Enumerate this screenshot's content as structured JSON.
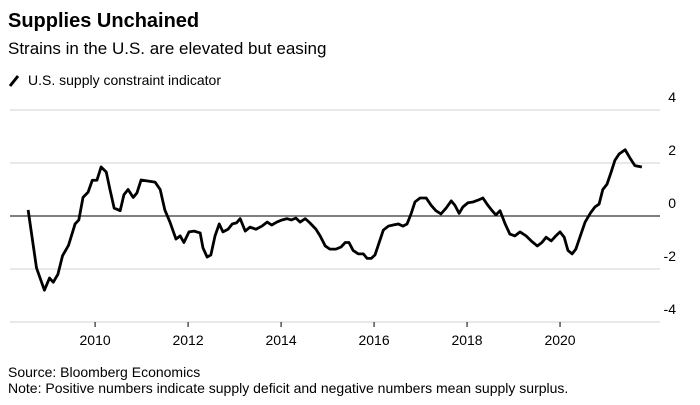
{
  "chart_data": {
    "type": "line",
    "title": "Supplies Unchained",
    "subtitle": "Strains in the U.S. are elevated but easing",
    "source": "Source: Bloomberg Economics",
    "note": "Note: Positive numbers indicate supply deficit and negative numbers mean supply surplus.",
    "x": [
      2008.56,
      2008.74,
      2008.91,
      2009.02,
      2009.1,
      2009.2,
      2009.3,
      2009.43,
      2009.57,
      2009.65,
      2009.74,
      2009.85,
      2009.94,
      2010.04,
      2010.13,
      2010.24,
      2010.32,
      2010.41,
      2010.54,
      2010.62,
      2010.71,
      2010.82,
      2010.9,
      2010.99,
      2011.13,
      2011.29,
      2011.4,
      2011.5,
      2011.61,
      2011.74,
      2011.83,
      2011.91,
      2012.02,
      2012.13,
      2012.26,
      2012.32,
      2012.41,
      2012.49,
      2012.58,
      2012.67,
      2012.75,
      2012.86,
      2012.95,
      2013.04,
      2013.12,
      2013.23,
      2013.33,
      2013.46,
      2013.59,
      2013.7,
      2013.8,
      2013.91,
      2014.02,
      2014.13,
      2014.22,
      2014.32,
      2014.41,
      2014.52,
      2014.62,
      2014.75,
      2014.84,
      2014.95,
      2015.05,
      2015.18,
      2015.29,
      2015.38,
      2015.46,
      2015.55,
      2015.66,
      2015.77,
      2015.85,
      2015.94,
      2016.02,
      2016.11,
      2016.2,
      2016.31,
      2016.41,
      2016.52,
      2016.62,
      2016.71,
      2016.8,
      2016.88,
      2016.99,
      2017.12,
      2017.23,
      2017.33,
      2017.44,
      2017.55,
      2017.66,
      2017.74,
      2017.83,
      2017.91,
      2018.02,
      2018.13,
      2018.24,
      2018.34,
      2018.45,
      2018.54,
      2018.62,
      2018.71,
      2018.82,
      2018.92,
      2019.03,
      2019.14,
      2019.27,
      2019.38,
      2019.51,
      2019.61,
      2019.7,
      2019.81,
      2019.91,
      2020.0,
      2020.09,
      2020.17,
      2020.26,
      2020.34,
      2020.45,
      2020.54,
      2020.65,
      2020.75,
      2020.84,
      2020.92,
      2021.01,
      2021.1,
      2021.18,
      2021.27,
      2021.4,
      2021.5,
      2021.61,
      2021.76
    ],
    "series": [
      {
        "name": "U.S. supply constraint indicator",
        "color": "#000000",
        "values": [
          0.23,
          -1.96,
          -2.8,
          -2.34,
          -2.5,
          -2.2,
          -1.5,
          -1.1,
          -0.3,
          -0.15,
          0.7,
          0.9,
          1.35,
          1.35,
          1.85,
          1.66,
          1.0,
          0.3,
          0.2,
          0.8,
          1.0,
          0.7,
          0.87,
          1.36,
          1.32,
          1.28,
          1.0,
          0.23,
          -0.23,
          -0.87,
          -0.75,
          -1.0,
          -0.6,
          -0.57,
          -0.64,
          -1.2,
          -1.55,
          -1.47,
          -0.75,
          -0.3,
          -0.6,
          -0.5,
          -0.3,
          -0.26,
          -0.1,
          -0.57,
          -0.42,
          -0.5,
          -0.38,
          -0.23,
          -0.34,
          -0.23,
          -0.15,
          -0.1,
          -0.15,
          -0.08,
          -0.23,
          -0.1,
          -0.26,
          -0.5,
          -0.75,
          -1.13,
          -1.25,
          -1.25,
          -1.17,
          -1.0,
          -1.0,
          -1.3,
          -1.43,
          -1.43,
          -1.6,
          -1.6,
          -1.47,
          -1.0,
          -0.53,
          -0.38,
          -0.34,
          -0.3,
          -0.38,
          -0.3,
          0.1,
          0.53,
          0.68,
          0.68,
          0.4,
          0.2,
          0.08,
          0.3,
          0.57,
          0.4,
          0.1,
          0.34,
          0.5,
          0.53,
          0.6,
          0.68,
          0.4,
          0.2,
          0.04,
          0.2,
          -0.3,
          -0.68,
          -0.75,
          -0.6,
          -0.75,
          -0.94,
          -1.13,
          -1.0,
          -0.8,
          -0.94,
          -0.75,
          -0.6,
          -0.8,
          -1.3,
          -1.43,
          -1.25,
          -0.68,
          -0.23,
          0.1,
          0.34,
          0.45,
          1.0,
          1.2,
          1.66,
          2.1,
          2.34,
          2.5,
          2.2,
          1.9,
          1.85
        ]
      }
    ],
    "xlim": [
      2008.17,
      2022.15
    ],
    "xticks": [
      2010,
      2012,
      2014,
      2016,
      2018,
      2020
    ],
    "ylim": [
      -4,
      4
    ],
    "yticks": [
      -4,
      -2,
      0,
      2,
      4
    ],
    "grid": true
  }
}
